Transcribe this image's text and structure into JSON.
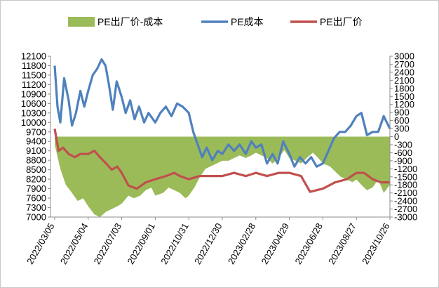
{
  "chart_data": {
    "type": "line",
    "legend_position": "top",
    "grid": false,
    "x_dates": [
      "2022/03/05",
      "2022/05/04",
      "2022/07/03",
      "2022/09/01",
      "2022/10/31",
      "2022/12/30",
      "2023/02/28",
      "2023/04/29",
      "2023/06/28",
      "2023/08/27",
      "2023/10/26"
    ],
    "y_left_ticks": [
      7000,
      7300,
      7600,
      7900,
      8200,
      8500,
      8800,
      9100,
      9400,
      9700,
      10000,
      10300,
      10600,
      10900,
      11200,
      11500,
      11800,
      12100
    ],
    "y_right_ticks": [
      -3000,
      -2700,
      -2400,
      -2100,
      -1800,
      -1500,
      -1200,
      -900,
      -600,
      -300,
      0,
      300,
      600,
      900,
      1200,
      1500,
      1800,
      2100,
      2400,
      2700,
      3000
    ],
    "ylim_left": [
      7000,
      12100
    ],
    "ylim_right": [
      -3000,
      3000
    ],
    "series": [
      {
        "name": "PE出厂价-成本",
        "type": "area",
        "axis": "right",
        "color": "#9bbb59",
        "points": [
          [
            "2022/03/05",
            -300
          ],
          [
            "2022/03/15",
            -1200
          ],
          [
            "2022/03/25",
            -1800
          ],
          [
            "2022/04/05",
            -2100
          ],
          [
            "2022/04/15",
            -2400
          ],
          [
            "2022/04/25",
            -2300
          ],
          [
            "2022/05/04",
            -2600
          ],
          [
            "2022/05/15",
            -2900
          ],
          [
            "2022/05/25",
            -3000
          ],
          [
            "2022/06/05",
            -2800
          ],
          [
            "2022/06/15",
            -2700
          ],
          [
            "2022/06/25",
            -2600
          ],
          [
            "2022/07/03",
            -2500
          ],
          [
            "2022/07/15",
            -2200
          ],
          [
            "2022/07/25",
            -2300
          ],
          [
            "2022/08/05",
            -2200
          ],
          [
            "2022/08/15",
            -2000
          ],
          [
            "2022/08/25",
            -1900
          ],
          [
            "2022/09/01",
            -2200
          ],
          [
            "2022/09/15",
            -2100
          ],
          [
            "2022/09/25",
            -1900
          ],
          [
            "2022/10/05",
            -2000
          ],
          [
            "2022/10/15",
            -2100
          ],
          [
            "2022/10/25",
            -2300
          ],
          [
            "2022/10/31",
            -2200
          ],
          [
            "2022/11/10",
            -1900
          ],
          [
            "2022/11/20",
            -1500
          ],
          [
            "2022/11/30",
            -1200
          ],
          [
            "2022/12/10",
            -1100
          ],
          [
            "2022/12/20",
            -1000
          ],
          [
            "2022/12/30",
            -900
          ],
          [
            "2023/01/10",
            -900
          ],
          [
            "2023/01/20",
            -800
          ],
          [
            "2023/01/30",
            -700
          ],
          [
            "2023/02/10",
            -800
          ],
          [
            "2023/02/20",
            -700
          ],
          [
            "2023/02/28",
            -600
          ],
          [
            "2023/03/10",
            -700
          ],
          [
            "2023/03/20",
            -800
          ],
          [
            "2023/03/30",
            -1000
          ],
          [
            "2023/04/10",
            -800
          ],
          [
            "2023/04/20",
            -500
          ],
          [
            "2023/04/29",
            -800
          ],
          [
            "2023/05/10",
            -900
          ],
          [
            "2023/05/20",
            -1000
          ],
          [
            "2023/05/30",
            -800
          ],
          [
            "2023/06/10",
            -600
          ],
          [
            "2023/06/20",
            -800
          ],
          [
            "2023/06/28",
            -1000
          ],
          [
            "2023/07/10",
            -1100
          ],
          [
            "2023/07/20",
            -1300
          ],
          [
            "2023/07/30",
            -1500
          ],
          [
            "2023/08/10",
            -1600
          ],
          [
            "2023/08/20",
            -1700
          ],
          [
            "2023/08/27",
            -1600
          ],
          [
            "2023/09/05",
            -1800
          ],
          [
            "2023/09/15",
            -2000
          ],
          [
            "2023/09/25",
            -1900
          ],
          [
            "2023/10/05",
            -1600
          ],
          [
            "2023/10/15",
            -2100
          ],
          [
            "2023/10/26",
            -1800
          ]
        ]
      },
      {
        "name": "PE成本",
        "type": "line",
        "axis": "left",
        "color": "#4f81bd",
        "points": [
          [
            "2022/03/05",
            11800
          ],
          [
            "2022/03/10",
            10500
          ],
          [
            "2022/03/15",
            10000
          ],
          [
            "2022/03/22",
            11400
          ],
          [
            "2022/03/30",
            10700
          ],
          [
            "2022/04/05",
            9900
          ],
          [
            "2022/04/12",
            10300
          ],
          [
            "2022/04/20",
            11000
          ],
          [
            "2022/04/27",
            10500
          ],
          [
            "2022/05/04",
            11000
          ],
          [
            "2022/05/12",
            11500
          ],
          [
            "2022/05/20",
            11700
          ],
          [
            "2022/05/28",
            12000
          ],
          [
            "2022/06/04",
            11800
          ],
          [
            "2022/06/10",
            11200
          ],
          [
            "2022/06/17",
            10400
          ],
          [
            "2022/06/24",
            11300
          ],
          [
            "2022/07/03",
            10800
          ],
          [
            "2022/07/10",
            10300
          ],
          [
            "2022/07/18",
            10700
          ],
          [
            "2022/07/26",
            10100
          ],
          [
            "2022/08/03",
            10500
          ],
          [
            "2022/08/12",
            10000
          ],
          [
            "2022/08/20",
            10300
          ],
          [
            "2022/09/01",
            10000
          ],
          [
            "2022/09/10",
            10300
          ],
          [
            "2022/09/20",
            10500
          ],
          [
            "2022/09/30",
            10200
          ],
          [
            "2022/10/10",
            10600
          ],
          [
            "2022/10/20",
            10500
          ],
          [
            "2022/10/31",
            10300
          ],
          [
            "2022/11/08",
            9700
          ],
          [
            "2022/11/16",
            9300
          ],
          [
            "2022/11/24",
            8900
          ],
          [
            "2022/12/02",
            9200
          ],
          [
            "2022/12/12",
            8800
          ],
          [
            "2022/12/22",
            9100
          ],
          [
            "2022/12/30",
            9000
          ],
          [
            "2023/01/10",
            9300
          ],
          [
            "2023/01/20",
            9100
          ],
          [
            "2023/01/30",
            9300
          ],
          [
            "2023/02/10",
            9000
          ],
          [
            "2023/02/20",
            9400
          ],
          [
            "2023/02/28",
            9200
          ],
          [
            "2023/03/10",
            9300
          ],
          [
            "2023/03/20",
            8700
          ],
          [
            "2023/03/30",
            9000
          ],
          [
            "2023/04/08",
            8700
          ],
          [
            "2023/04/18",
            9400
          ],
          [
            "2023/04/29",
            9000
          ],
          [
            "2023/05/08",
            8600
          ],
          [
            "2023/05/18",
            8900
          ],
          [
            "2023/05/28",
            8700
          ],
          [
            "2023/06/07",
            8900
          ],
          [
            "2023/06/17",
            8600
          ],
          [
            "2023/06/28",
            8700
          ],
          [
            "2023/07/08",
            9100
          ],
          [
            "2023/07/18",
            9500
          ],
          [
            "2023/07/28",
            9700
          ],
          [
            "2023/08/07",
            9700
          ],
          [
            "2023/08/17",
            9900
          ],
          [
            "2023/08/27",
            10200
          ],
          [
            "2023/09/05",
            10300
          ],
          [
            "2023/09/15",
            9600
          ],
          [
            "2023/09/25",
            9700
          ],
          [
            "2023/10/05",
            9700
          ],
          [
            "2023/10/15",
            10200
          ],
          [
            "2023/10/26",
            9800
          ]
        ]
      },
      {
        "name": "PE出厂价",
        "type": "line",
        "axis": "left",
        "color": "#c0504d",
        "points": [
          [
            "2022/03/05",
            9800
          ],
          [
            "2022/03/12",
            9100
          ],
          [
            "2022/03/20",
            9200
          ],
          [
            "2022/03/30",
            9000
          ],
          [
            "2022/04/10",
            8900
          ],
          [
            "2022/04/20",
            9000
          ],
          [
            "2022/05/04",
            9000
          ],
          [
            "2022/05/15",
            9100
          ],
          [
            "2022/05/25",
            8900
          ],
          [
            "2022/06/05",
            8700
          ],
          [
            "2022/06/15",
            8500
          ],
          [
            "2022/06/25",
            8600
          ],
          [
            "2022/07/03",
            8400
          ],
          [
            "2022/07/15",
            8000
          ],
          [
            "2022/07/30",
            7900
          ],
          [
            "2022/08/15",
            8100
          ],
          [
            "2022/09/01",
            8200
          ],
          [
            "2022/09/20",
            8300
          ],
          [
            "2022/10/05",
            8400
          ],
          [
            "2022/10/15",
            8300
          ],
          [
            "2022/10/31",
            8200
          ],
          [
            "2022/11/20",
            8300
          ],
          [
            "2022/12/10",
            8300
          ],
          [
            "2022/12/30",
            8300
          ],
          [
            "2023/01/20",
            8400
          ],
          [
            "2023/02/10",
            8300
          ],
          [
            "2023/02/28",
            8400
          ],
          [
            "2023/03/20",
            8300
          ],
          [
            "2023/04/10",
            8400
          ],
          [
            "2023/04/29",
            8400
          ],
          [
            "2023/05/20",
            8300
          ],
          [
            "2023/06/05",
            7800
          ],
          [
            "2023/06/28",
            7900
          ],
          [
            "2023/07/20",
            8100
          ],
          [
            "2023/08/10",
            8200
          ],
          [
            "2023/08/27",
            8400
          ],
          [
            "2023/09/10",
            8400
          ],
          [
            "2023/09/25",
            8200
          ],
          [
            "2023/10/10",
            8100
          ],
          [
            "2023/10/26",
            8100
          ]
        ]
      }
    ]
  }
}
